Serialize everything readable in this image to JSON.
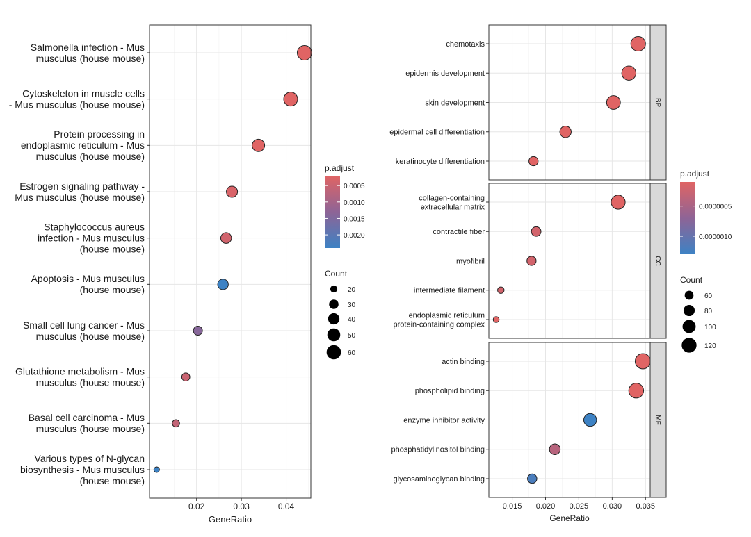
{
  "chart_data": [
    {
      "type": "scatter",
      "xlabel": "GeneRatio",
      "ylabel": "",
      "xlim": [
        0.0095,
        0.0455
      ],
      "x_ticks": [
        0.02,
        0.03,
        0.04
      ],
      "x_tick_labels": [
        "0.02",
        "0.03",
        "0.04"
      ],
      "grid": true,
      "categories": [
        [
          "Salmonella infection - Mus",
          "musculus (house mouse)"
        ],
        [
          "Cytoskeleton in muscle cells",
          "- Mus musculus (house mouse)"
        ],
        [
          "Protein processing in",
          "endoplasmic reticulum - Mus",
          "musculus (house mouse)"
        ],
        [
          "Estrogen signaling pathway -",
          "Mus musculus (house mouse)"
        ],
        [
          "Staphylococcus aureus",
          "infection - Mus musculus",
          "(house mouse)"
        ],
        [
          "Apoptosis - Mus musculus",
          "(house mouse)"
        ],
        [
          "Small cell lung cancer - Mus",
          "musculus (house mouse)"
        ],
        [
          "Glutathione metabolism - Mus",
          "musculus (house mouse)"
        ],
        [
          "Basal cell carcinoma - Mus",
          "musculus (house mouse)"
        ],
        [
          "Various types of N-glycan",
          "biosynthesis - Mus musculus",
          "(house mouse)"
        ]
      ],
      "points": [
        {
          "x": 0.0441,
          "count": 62,
          "p_adjust": 0.0002
        },
        {
          "x": 0.041,
          "count": 57,
          "p_adjust": 0.0002
        },
        {
          "x": 0.0338,
          "count": 47,
          "p_adjust": 0.0002
        },
        {
          "x": 0.0279,
          "count": 39,
          "p_adjust": 0.0003
        },
        {
          "x": 0.0266,
          "count": 37,
          "p_adjust": 0.0004
        },
        {
          "x": 0.0259,
          "count": 36,
          "p_adjust": 0.0024
        },
        {
          "x": 0.0203,
          "count": 28,
          "p_adjust": 0.0014
        },
        {
          "x": 0.0176,
          "count": 24,
          "p_adjust": 0.0005
        },
        {
          "x": 0.0154,
          "count": 21,
          "p_adjust": 0.0006
        },
        {
          "x": 0.0111,
          "count": 15,
          "p_adjust": 0.0024
        }
      ],
      "color_legend": {
        "title": "p.adjust",
        "range": [
          0.0002,
          0.0024
        ],
        "tick_values": [
          0.0005,
          0.001,
          0.0015,
          0.002
        ],
        "tick_labels": [
          "0.0005",
          "0.0010",
          "0.0015",
          "0.0020"
        ]
      },
      "size_legend": {
        "title": "Count",
        "range": [
          15,
          62
        ],
        "values": [
          20,
          30,
          40,
          50,
          60
        ],
        "labels": [
          "20",
          "30",
          "40",
          "50",
          "60"
        ]
      },
      "colors": {
        "low_p": "#e06464",
        "mid_p": "#8e6496",
        "high_p": "#3d82c4"
      }
    },
    {
      "type": "scatter",
      "xlabel": "GeneRatio",
      "ylabel": "",
      "xlim": [
        0.0115,
        0.0357
      ],
      "x_ticks": [
        0.015,
        0.02,
        0.025,
        0.03,
        0.035
      ],
      "x_tick_labels": [
        "0.015",
        "0.020",
        "0.025",
        "0.030",
        "0.035"
      ],
      "grid": true,
      "facets": [
        {
          "label": "BP",
          "categories": [
            [
              "chemotaxis"
            ],
            [
              "epidermis development"
            ],
            [
              "skin development"
            ],
            [
              "epidermal cell differentiation"
            ],
            [
              "keratinocyte differentiation"
            ]
          ],
          "points": [
            {
              "x": 0.0339,
              "count": 118,
              "p_adjust": 1e-07
            },
            {
              "x": 0.0325,
              "count": 112,
              "p_adjust": 1e-07
            },
            {
              "x": 0.0302,
              "count": 107,
              "p_adjust": 1e-07
            },
            {
              "x": 0.023,
              "count": 82,
              "p_adjust": 1e-07
            },
            {
              "x": 0.0182,
              "count": 63,
              "p_adjust": 1e-07
            }
          ]
        },
        {
          "label": "CC",
          "categories": [
            [
              "collagen-containing",
              "extracellular matrix"
            ],
            [
              "contractile fiber"
            ],
            [
              "myofibril"
            ],
            [
              "intermediate filament"
            ],
            [
              "endoplasmic reticulum",
              "protein-containing complex"
            ]
          ],
          "points": [
            {
              "x": 0.0309,
              "count": 110,
              "p_adjust": 1e-07
            },
            {
              "x": 0.0186,
              "count": 66,
              "p_adjust": 2e-07
            },
            {
              "x": 0.0179,
              "count": 63,
              "p_adjust": 2e-07
            },
            {
              "x": 0.0133,
              "count": 45,
              "p_adjust": 2e-07
            },
            {
              "x": 0.0126,
              "count": 42,
              "p_adjust": 1e-07
            }
          ]
        },
        {
          "label": "MF",
          "categories": [
            [
              "actin binding"
            ],
            [
              "phospholipid binding"
            ],
            [
              "enzyme inhibitor activity"
            ],
            [
              "phosphatidylinositol binding"
            ],
            [
              "glycosaminoglycan binding"
            ]
          ],
          "points": [
            {
              "x": 0.0346,
              "count": 126,
              "p_adjust": 1e-07
            },
            {
              "x": 0.0336,
              "count": 120,
              "p_adjust": 1e-07
            },
            {
              "x": 0.0267,
              "count": 97,
              "p_adjust": 1.3e-06
            },
            {
              "x": 0.0214,
              "count": 76,
              "p_adjust": 4e-07
            },
            {
              "x": 0.018,
              "count": 64,
              "p_adjust": 1.2e-06
            }
          ]
        }
      ],
      "color_legend": {
        "title": "p.adjust",
        "range": [
          1e-07,
          1.3e-06
        ],
        "tick_values": [
          5e-07,
          1e-06
        ],
        "tick_labels": [
          "0.0000005",
          "0.0000010"
        ]
      },
      "size_legend": {
        "title": "Count",
        "range": [
          40,
          126
        ],
        "values": [
          60,
          80,
          100,
          120
        ],
        "labels": [
          "60",
          "80",
          "100",
          "120"
        ]
      },
      "colors": {
        "low_p": "#e06464",
        "mid_p": "#8e6496",
        "high_p": "#3d82c4"
      }
    }
  ]
}
